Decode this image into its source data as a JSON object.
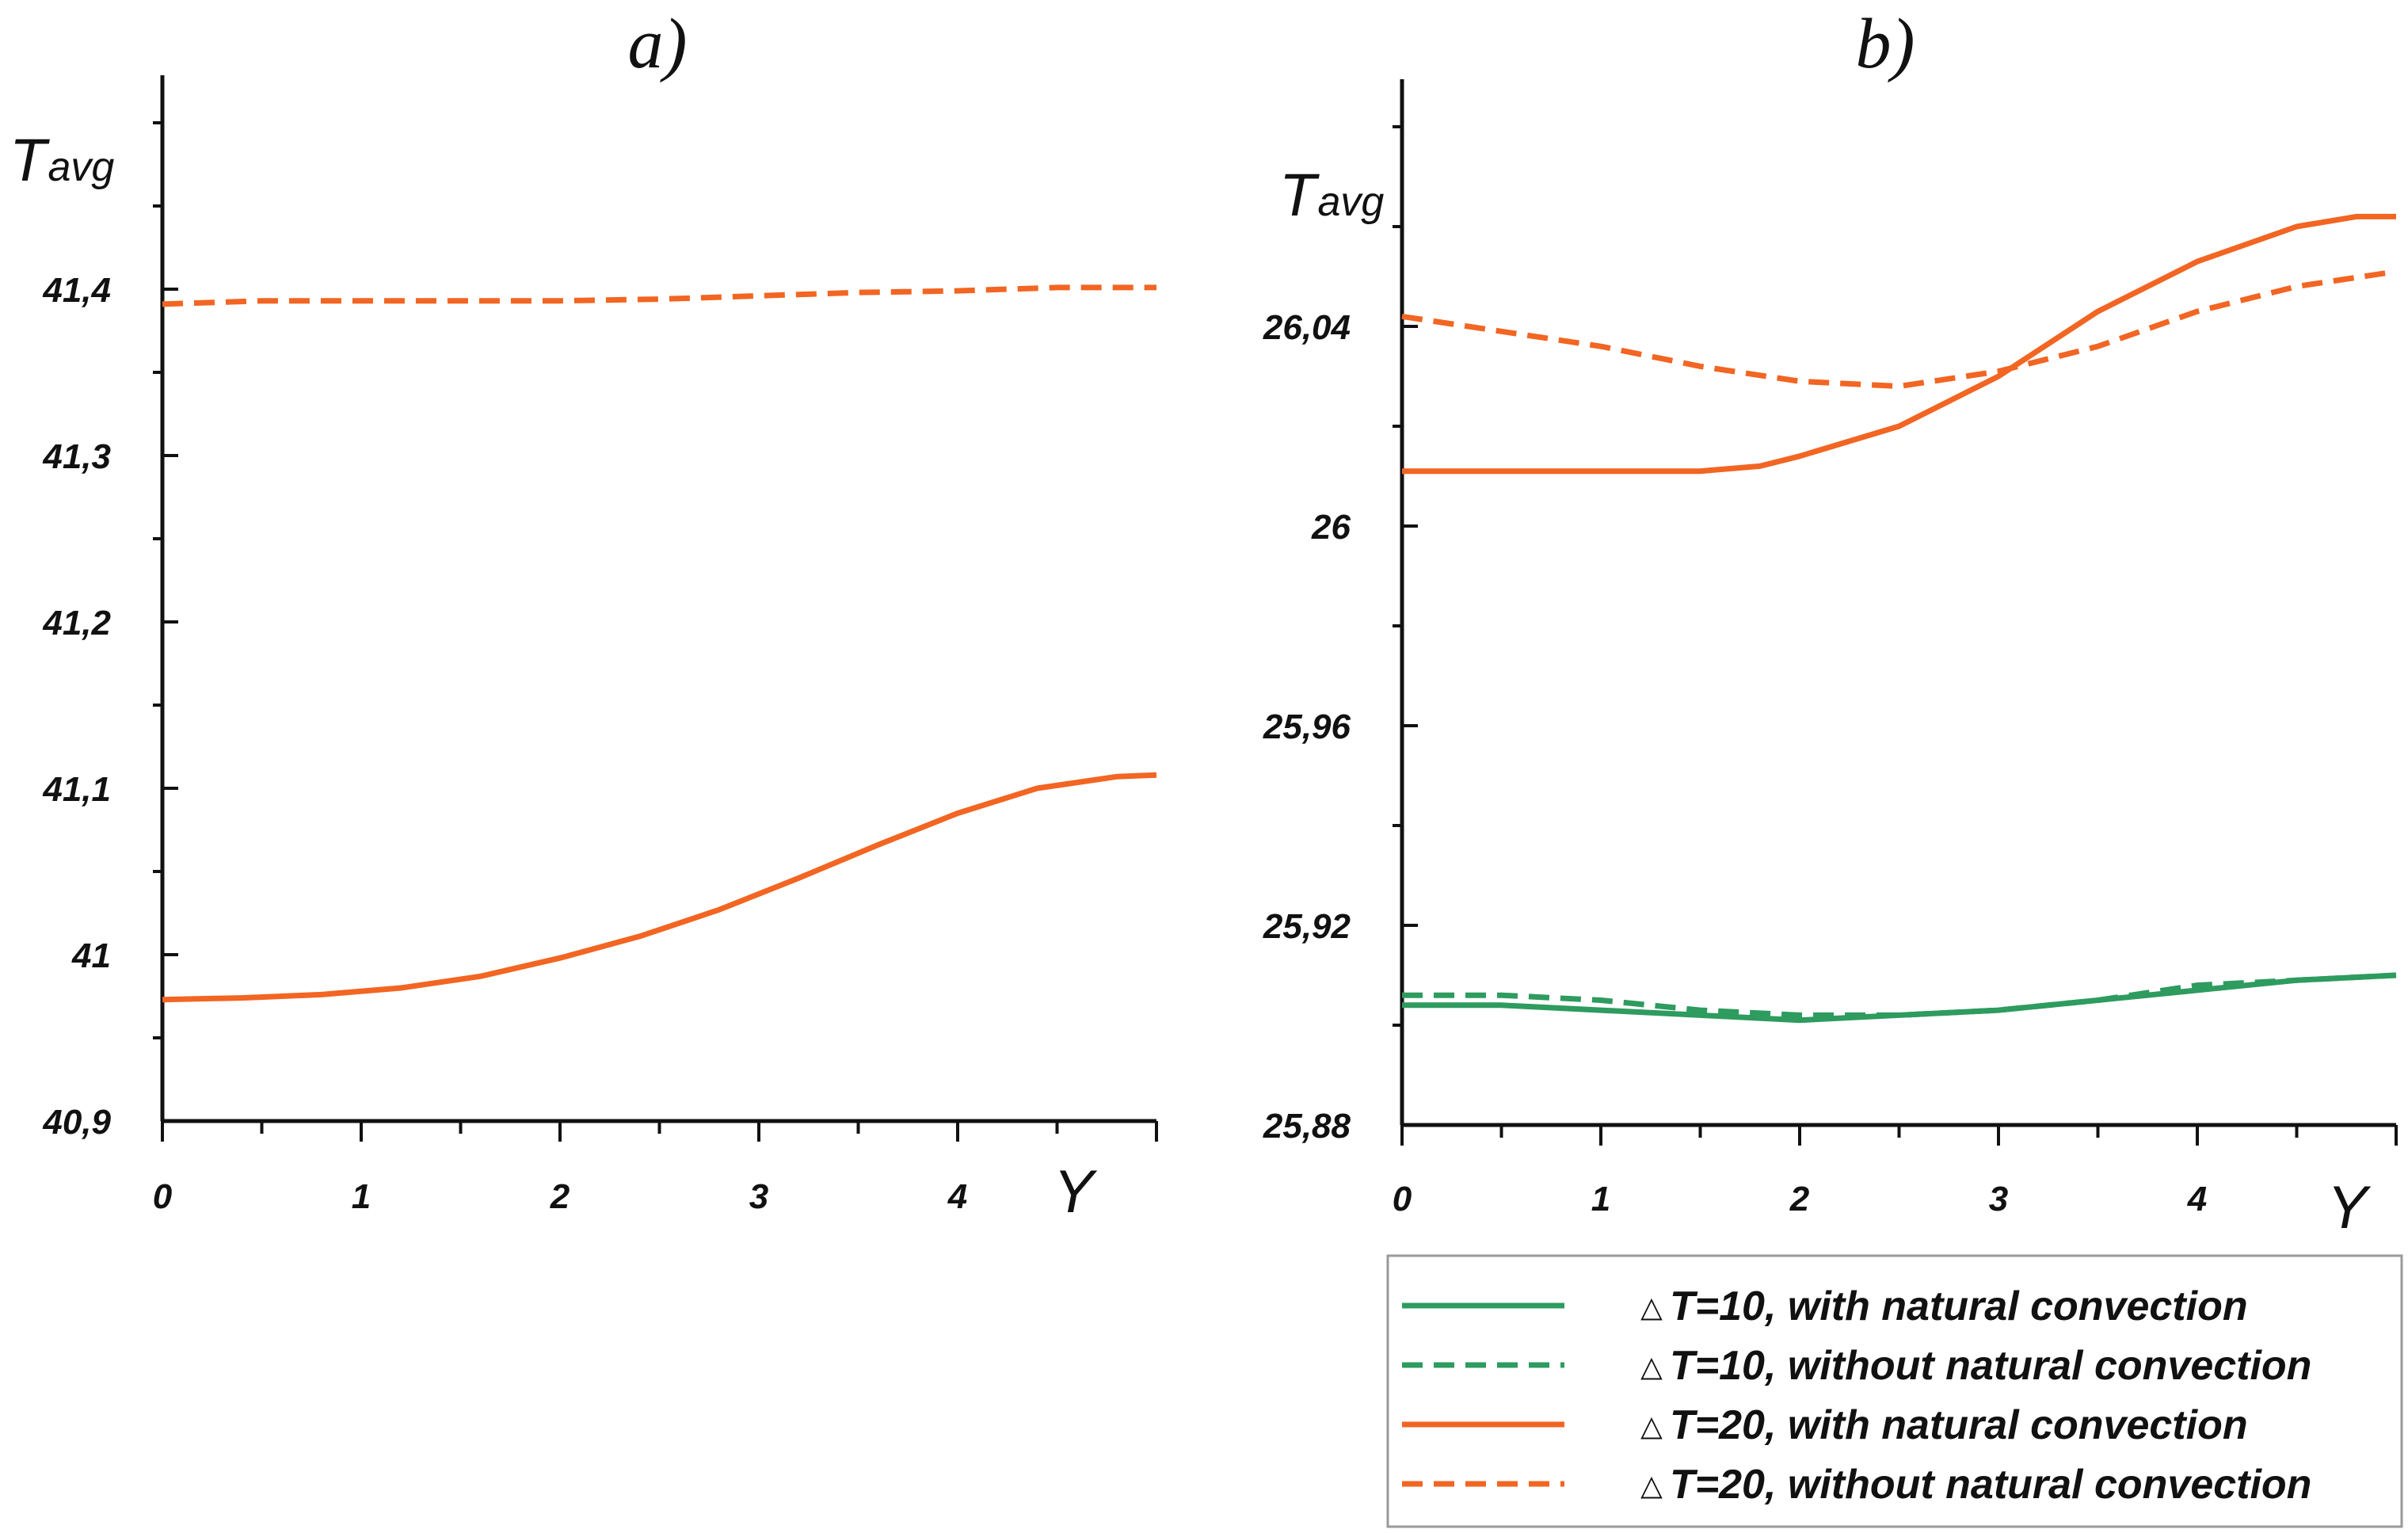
{
  "chart_data": [
    {
      "type": "line",
      "title": "a)",
      "xlabel": "Y",
      "ylabel": "Tavg",
      "ylabel_main": "T",
      "ylabel_sub": "avg",
      "xlim": [
        0,
        5
      ],
      "ylim": [
        40.9,
        41.5
      ],
      "xticks": [
        0,
        1,
        2,
        3,
        4
      ],
      "xtick_labels": [
        "0",
        "1",
        "2",
        "3",
        "4"
      ],
      "yticks": [
        40.9,
        41.0,
        41.1,
        41.2,
        41.3,
        41.4
      ],
      "ytick_labels": [
        "40,9",
        "41",
        "41,1",
        "41,2",
        "41,3",
        "41,4"
      ],
      "series": [
        {
          "name": "ΔT=20, with natural convection",
          "style": "solid",
          "color": "#F26522",
          "x": [
            0,
            0.4,
            0.8,
            1.2,
            1.6,
            2.0,
            2.4,
            2.8,
            3.2,
            3.6,
            4.0,
            4.4,
            4.8,
            5.0
          ],
          "y": [
            40.973,
            40.974,
            40.976,
            40.98,
            40.987,
            40.998,
            41.011,
            41.027,
            41.046,
            41.066,
            41.085,
            41.1,
            41.107,
            41.108
          ]
        },
        {
          "name": "ΔT=20, without natural convection",
          "style": "dashed",
          "color": "#F26522",
          "x": [
            0,
            0.5,
            1.0,
            1.5,
            2.0,
            2.5,
            3.0,
            3.5,
            4.0,
            4.5,
            5.0
          ],
          "y": [
            41.391,
            41.393,
            41.393,
            41.393,
            41.393,
            41.394,
            41.396,
            41.398,
            41.399,
            41.401,
            41.401
          ]
        }
      ]
    },
    {
      "type": "line",
      "title": "b)",
      "xlabel": "Y",
      "ylabel": "Tavg",
      "ylabel_main": "T",
      "ylabel_sub": "avg",
      "xlim": [
        0,
        5
      ],
      "ylim": [
        25.88,
        26.08
      ],
      "xticks": [
        0,
        1,
        2,
        3,
        4
      ],
      "xtick_labels": [
        "0",
        "1",
        "2",
        "3",
        "4"
      ],
      "yticks": [
        25.88,
        25.92,
        25.96,
        26.0,
        26.04
      ],
      "ytick_labels": [
        "25,88",
        "25,92",
        "25,96",
        "26",
        "26,04"
      ],
      "series": [
        {
          "name": "ΔT=10, with natural convection",
          "style": "solid",
          "color": "#2E9B5F",
          "x": [
            0,
            0.5,
            1.0,
            1.5,
            2.0,
            2.5,
            3.0,
            3.5,
            4.0,
            4.5,
            5.0
          ],
          "y": [
            25.904,
            25.904,
            25.903,
            25.902,
            25.901,
            25.902,
            25.903,
            25.905,
            25.907,
            25.909,
            25.91
          ]
        },
        {
          "name": "ΔT=10, without natural convection",
          "style": "dashed",
          "color": "#2E9B5F",
          "x": [
            0,
            0.5,
            1.0,
            1.5,
            2.0,
            2.5,
            3.0,
            3.5,
            4.0,
            4.5,
            5.0
          ],
          "y": [
            25.906,
            25.906,
            25.905,
            25.903,
            25.902,
            25.902,
            25.903,
            25.905,
            25.908,
            25.909,
            25.91
          ]
        },
        {
          "name": "ΔT=20, with natural convection",
          "style": "solid",
          "color": "#F26522",
          "x": [
            0,
            0.5,
            1.0,
            1.5,
            1.8,
            2.0,
            2.5,
            3.0,
            3.5,
            4.0,
            4.5,
            4.8,
            5.0
          ],
          "y": [
            26.011,
            26.011,
            26.011,
            26.011,
            26.012,
            26.014,
            26.02,
            26.03,
            26.043,
            26.053,
            26.06,
            26.062,
            26.062
          ]
        },
        {
          "name": "ΔT=20, without natural convection",
          "style": "dashed",
          "color": "#F26522",
          "x": [
            0,
            0.5,
            1.0,
            1.5,
            2.0,
            2.5,
            3.0,
            3.5,
            4.0,
            4.5,
            5.0
          ],
          "y": [
            26.042,
            26.039,
            26.036,
            26.032,
            26.029,
            26.028,
            26.031,
            26.036,
            26.043,
            26.048,
            26.051
          ]
        }
      ]
    }
  ],
  "legend": {
    "placement": "bottom-right",
    "delta_symbol": "△",
    "entries": [
      {
        "label": "T=10, with natural convection",
        "style": "solid",
        "color": "#2E9B5F"
      },
      {
        "label": "T=10, without natural convection",
        "style": "dashed",
        "color": "#2E9B5F"
      },
      {
        "label": "T=20, with natural convection",
        "style": "solid",
        "color": "#F26522"
      },
      {
        "label": "T=20, without natural convection",
        "style": "dashed",
        "color": "#F26522"
      }
    ]
  }
}
